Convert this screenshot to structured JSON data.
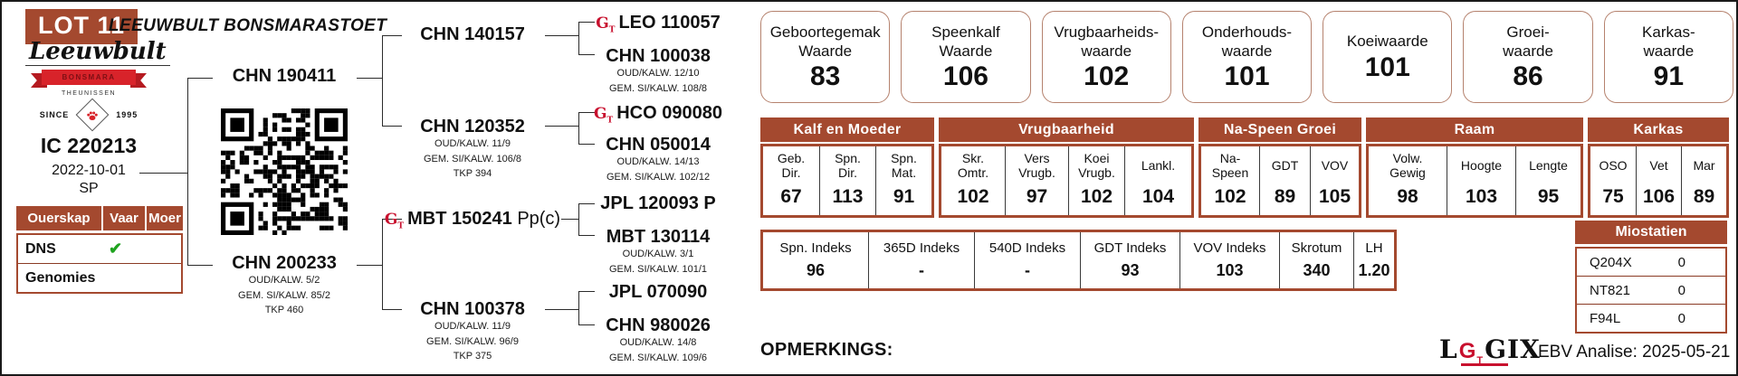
{
  "colors": {
    "accent": "#a4492f",
    "gt_red": "#c8102e",
    "check_green": "#1fa31f",
    "ribbon_red": "#d8232a"
  },
  "header": {
    "lot_badge": "LOT 11",
    "stud_title": "LEEUWBULT BONSMARASTOET"
  },
  "logo": {
    "script_name": "Leeuwbult",
    "ribbon_text": "BONSMARA",
    "ribbon_sub": "THEUNISSEN",
    "since_label": "SINCE",
    "since_year": "1995"
  },
  "subject": {
    "id": "IC 220213",
    "birth_date": "2022-10-01",
    "code": "SP"
  },
  "ouerskap": {
    "headers": [
      "Ouerskap",
      "Vaar",
      "Moer"
    ],
    "rows": [
      {
        "label": "DNS",
        "vaar": "✔",
        "moer": ""
      },
      {
        "label": "Genomies",
        "vaar": "",
        "moer": ""
      }
    ]
  },
  "pedigree": {
    "gen2": [
      {
        "id": "CHN 190411"
      },
      {
        "id": "CHN 200233",
        "stats": [
          "OUD/KALW. 5/2",
          "GEM. SI/KALW. 85/2",
          "TKP 460"
        ]
      }
    ],
    "gen3": [
      {
        "id": "CHN 140157"
      },
      {
        "id": "CHN 120352",
        "stats": [
          "OUD/KALW. 11/9",
          "GEM. SI/KALW. 106/8",
          "TKP 394"
        ]
      },
      {
        "id": "MBT 150241",
        "suffix": "Pp(c)",
        "gt": true
      },
      {
        "id": "CHN 100378",
        "stats": [
          "OUD/KALW. 11/9",
          "GEM. SI/KALW. 96/9",
          "TKP 375"
        ]
      }
    ],
    "gen4": [
      {
        "id": "LEO 110057",
        "gt": true
      },
      {
        "id": "CHN 100038",
        "stats": [
          "OUD/KALW. 12/10",
          "GEM. SI/KALW. 108/8"
        ]
      },
      {
        "id": "HCO 090080",
        "gt": true
      },
      {
        "id": "CHN 050014",
        "stats": [
          "OUD/KALW. 14/13",
          "GEM. SI/KALW. 102/12"
        ]
      },
      {
        "id": "JPL 120093 P"
      },
      {
        "id": "MBT 130114",
        "stats": [
          "OUD/KALW. 3/1",
          "GEM. SI/KALW. 101/1"
        ]
      },
      {
        "id": "JPL 070090"
      },
      {
        "id": "CHN 980026",
        "stats": [
          "OUD/KALW. 14/8",
          "GEM. SI/KALW. 109/6"
        ]
      }
    ]
  },
  "waardes": [
    {
      "label": "Geboortegemak\nWaarde",
      "value": "83"
    },
    {
      "label": "Speenkalf\nWaarde",
      "value": "106"
    },
    {
      "label": "Vrugbaarheids-\nwaarde",
      "value": "102"
    },
    {
      "label": "Onderhouds-\nwaarde",
      "value": "101"
    },
    {
      "label": "Koeiwaarde",
      "value": "101"
    },
    {
      "label": "Groei-\nwaarde",
      "value": "86"
    },
    {
      "label": "Karkas-\nwaarde",
      "value": "91"
    }
  ],
  "ebv_table": {
    "groups": [
      {
        "name": "Kalf en Moeder",
        "cols": [
          {
            "label": "Geb.\nDir.",
            "value": "67"
          },
          {
            "label": "Spn.\nDir.",
            "value": "113"
          },
          {
            "label": "Spn.\nMat.",
            "value": "91"
          }
        ]
      },
      {
        "name": "Vrugbaarheid",
        "cols": [
          {
            "label": "Skr.\nOmtr.",
            "value": "102"
          },
          {
            "label": "Vers\nVrugb.",
            "value": "97"
          },
          {
            "label": "Koei\nVrugb.",
            "value": "102"
          },
          {
            "label": "Lankl.",
            "value": "104"
          }
        ]
      },
      {
        "name": "Na-Speen Groei",
        "cols": [
          {
            "label": "Na-\nSpeen",
            "value": "102"
          },
          {
            "label": "GDT",
            "value": "89"
          },
          {
            "label": "VOV",
            "value": "105"
          }
        ]
      },
      {
        "name": "Raam",
        "cols": [
          {
            "label": "Volw.\nGewig",
            "value": "98"
          },
          {
            "label": "Hoogte",
            "value": "103"
          },
          {
            "label": "Lengte",
            "value": "95"
          }
        ]
      },
      {
        "name": "Karkas",
        "cols": [
          {
            "label": "OSO",
            "value": "75"
          },
          {
            "label": "Vet",
            "value": "106"
          },
          {
            "label": "Mar",
            "value": "89"
          }
        ]
      }
    ]
  },
  "indeks_table": [
    {
      "label": "Spn. Indeks",
      "value": "96"
    },
    {
      "label": "365D Indeks",
      "value": "-"
    },
    {
      "label": "540D Indeks",
      "value": "-"
    },
    {
      "label": "GDT Indeks",
      "value": "93"
    },
    {
      "label": "VOV Indeks",
      "value": "103"
    },
    {
      "label": "Skrotum",
      "value": "340"
    },
    {
      "label": "LH",
      "value": "1.20"
    }
  ],
  "miostatien": {
    "header": "Miostatien",
    "rows": [
      {
        "label": "Q204X",
        "value": "0"
      },
      {
        "label": "NT821",
        "value": "0"
      },
      {
        "label": "F94L",
        "value": "0"
      }
    ]
  },
  "footer": {
    "opmerkings": "OPMERKINGS:",
    "ebv_analise": "EBV Analise: 2025-05-21",
    "logix_l": "L",
    "logix_gix": "GIX"
  },
  "gt_icon": {
    "g": "G",
    "t": "T"
  }
}
